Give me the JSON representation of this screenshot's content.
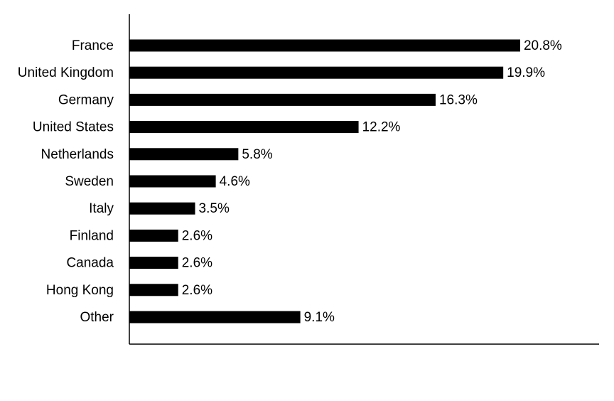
{
  "chart_data": {
    "type": "bar",
    "orientation": "horizontal",
    "categories": [
      "France",
      "United Kingdom",
      "Germany",
      "United States",
      "Netherlands",
      "Sweden",
      "Italy",
      "Finland",
      "Canada",
      "Hong Kong",
      "Other"
    ],
    "values": [
      20.8,
      19.9,
      16.3,
      12.2,
      5.8,
      4.6,
      3.5,
      2.6,
      2.6,
      2.6,
      9.1
    ],
    "value_labels": [
      "20.8%",
      "19.9%",
      "16.3%",
      "12.2%",
      "5.8%",
      "4.6%",
      "3.5%",
      "2.6%",
      "2.6%",
      "2.6%",
      "9.1%"
    ],
    "color": "#000000",
    "xlim": [
      0,
      25
    ]
  }
}
